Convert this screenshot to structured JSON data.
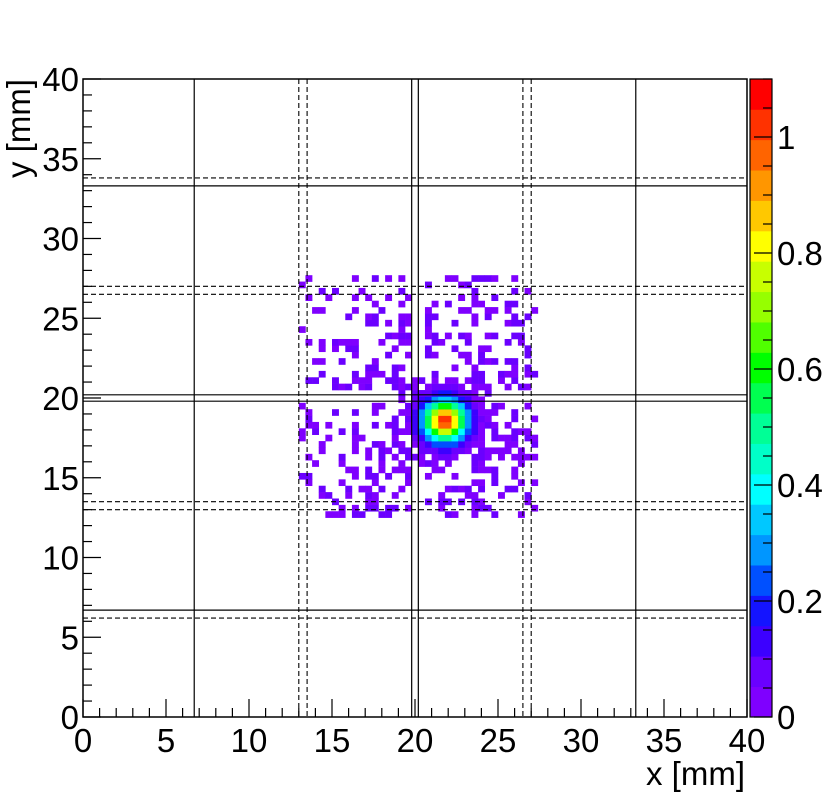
{
  "chart_data": {
    "type": "heatmap",
    "title": "",
    "xlabel": "x [mm]",
    "ylabel": "y [mm]",
    "xlim": [
      0,
      40
    ],
    "ylim": [
      0,
      40
    ],
    "x_ticks": [
      "0",
      "5",
      "10",
      "15",
      "20",
      "25",
      "30",
      "35",
      "40"
    ],
    "y_ticks": [
      "0",
      "5",
      "10",
      "15",
      "20",
      "25",
      "30",
      "35",
      "40"
    ],
    "colorbar": {
      "min": 0,
      "max": 1.1,
      "ticks": [
        "0",
        "0.2",
        "0.4",
        "0.6",
        "0.8",
        "1"
      ],
      "tick_values": [
        0,
        0.2,
        0.4,
        0.6,
        0.8,
        1.0
      ]
    },
    "bin_size_mm": 0.4,
    "hotspot": {
      "x": 21.8,
      "y": 18.6,
      "peak": 1.05
    },
    "scatter_region": {
      "x": [
        13.0,
        27.3
      ],
      "y": [
        12.5,
        27.3
      ]
    },
    "grid": {
      "solid_vertical_x": [
        6.7,
        19.8,
        20.2,
        33.3
      ],
      "dashed_vertical_x": [
        13.0,
        13.5,
        26.5,
        27.0
      ],
      "solid_horizontal_y": [
        6.7,
        19.8,
        20.2,
        33.3
      ],
      "dashed_horizontal_y": [
        6.2,
        13.0,
        13.5,
        26.5,
        27.0,
        33.8
      ]
    },
    "colors": {
      "palette": [
        "#7F00FF",
        "#6A00FF",
        "#3C00FF",
        "#1414FF",
        "#0050FF",
        "#0096FF",
        "#00C8FF",
        "#00FFFF",
        "#00FFC8",
        "#00FF96",
        "#00FF50",
        "#00FF00",
        "#50FF00",
        "#96FF00",
        "#C8FF00",
        "#FFFF00",
        "#FFC800",
        "#FF9600",
        "#FF6400",
        "#FF3200",
        "#FF0000"
      ]
    }
  }
}
